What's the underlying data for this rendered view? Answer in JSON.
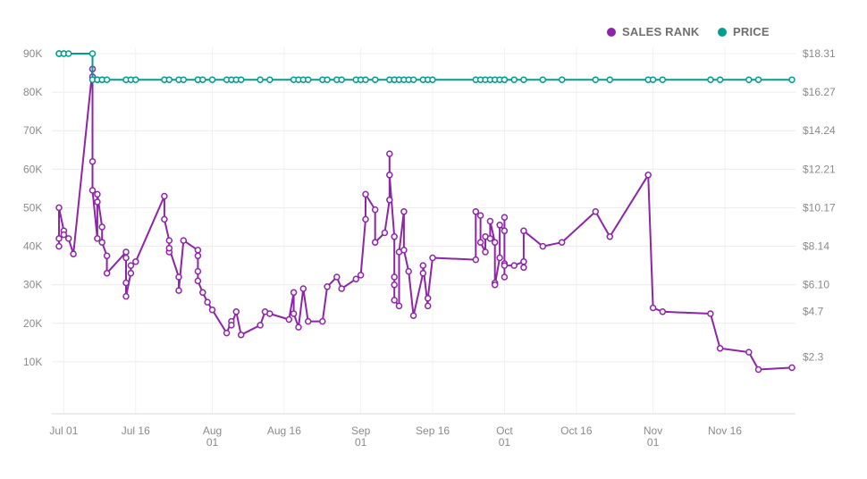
{
  "chart_data": {
    "type": "line",
    "title": "",
    "xlabel": "",
    "ylabel": "",
    "x_range": [
      "2020-06-30",
      "2020-11-30"
    ],
    "ylim": [
      0,
      90000
    ],
    "y2lim": [
      0,
      18.31
    ],
    "grid": true,
    "legend": "top-right",
    "x_ticks": [
      {
        "date": "2020-07-01",
        "line1": "Jul 01",
        "line2": ""
      },
      {
        "date": "2020-07-16",
        "line1": "Jul 16",
        "line2": ""
      },
      {
        "date": "2020-08-01",
        "line1": "Aug",
        "line2": "01"
      },
      {
        "date": "2020-08-16",
        "line1": "Aug 16",
        "line2": ""
      },
      {
        "date": "2020-09-01",
        "line1": "Sep",
        "line2": "01"
      },
      {
        "date": "2020-09-16",
        "line1": "Sep 16",
        "line2": ""
      },
      {
        "date": "2020-10-01",
        "line1": "Oct",
        "line2": "01"
      },
      {
        "date": "2020-10-16",
        "line1": "Oct 16",
        "line2": ""
      },
      {
        "date": "2020-11-01",
        "line1": "Nov",
        "line2": "01"
      },
      {
        "date": "2020-11-16",
        "line1": "Nov 16",
        "line2": ""
      }
    ],
    "y_ticks_left": [
      {
        "value": 10000,
        "label": "10K"
      },
      {
        "value": 20000,
        "label": "20K"
      },
      {
        "value": 30000,
        "label": "30K"
      },
      {
        "value": 40000,
        "label": "40K"
      },
      {
        "value": 50000,
        "label": "50K"
      },
      {
        "value": 60000,
        "label": "60K"
      },
      {
        "value": 70000,
        "label": "70K"
      },
      {
        "value": 80000,
        "label": "80K"
      },
      {
        "value": 90000,
        "label": "90K"
      }
    ],
    "y_ticks_right": [
      {
        "value": 2.3,
        "label": "$2.3"
      },
      {
        "value": 4.7,
        "label": "$4.7"
      },
      {
        "value": 6.1,
        "label": "$6.10"
      },
      {
        "value": 8.14,
        "label": "$8.14"
      },
      {
        "value": 10.17,
        "label": "$10.17"
      },
      {
        "value": 12.21,
        "label": "$12.21"
      },
      {
        "value": 14.24,
        "label": "$14.24"
      },
      {
        "value": 16.27,
        "label": "$16.27"
      },
      {
        "value": 18.31,
        "label": "$18.31"
      }
    ],
    "series": [
      {
        "name": "SALES RANK",
        "color": "#8e24aa",
        "axis": "left",
        "points": [
          [
            "2020-06-30",
            40000
          ],
          [
            "2020-06-30",
            42000
          ],
          [
            "2020-06-30",
            50000
          ],
          [
            "2020-07-01",
            44000
          ],
          [
            "2020-07-01",
            43000
          ],
          [
            "2020-07-02",
            42000
          ],
          [
            "2020-07-03",
            38000
          ],
          [
            "2020-07-07",
            86000
          ],
          [
            "2020-07-07",
            84000
          ],
          [
            "2020-07-07",
            62000
          ],
          [
            "2020-07-07",
            54500
          ],
          [
            "2020-07-08",
            42000
          ],
          [
            "2020-07-08",
            51500
          ],
          [
            "2020-07-08",
            53500
          ],
          [
            "2020-07-09",
            45000
          ],
          [
            "2020-07-09",
            41000
          ],
          [
            "2020-07-10",
            37500
          ],
          [
            "2020-07-10",
            33000
          ],
          [
            "2020-07-14",
            38500
          ],
          [
            "2020-07-14",
            37000
          ],
          [
            "2020-07-14",
            30500
          ],
          [
            "2020-07-14",
            27000
          ],
          [
            "2020-07-15",
            33000
          ],
          [
            "2020-07-15",
            35000
          ],
          [
            "2020-07-16",
            36000
          ],
          [
            "2020-07-22",
            53000
          ],
          [
            "2020-07-22",
            47000
          ],
          [
            "2020-07-23",
            41500
          ],
          [
            "2020-07-23",
            38500
          ],
          [
            "2020-07-23",
            39500
          ],
          [
            "2020-07-25",
            32000
          ],
          [
            "2020-07-25",
            28500
          ],
          [
            "2020-07-26",
            41500
          ],
          [
            "2020-07-29",
            39000
          ],
          [
            "2020-07-29",
            37500
          ],
          [
            "2020-07-29",
            33500
          ],
          [
            "2020-07-29",
            31000
          ],
          [
            "2020-07-30",
            28000
          ],
          [
            "2020-07-31",
            25500
          ],
          [
            "2020-08-01",
            23500
          ],
          [
            "2020-08-04",
            17500
          ],
          [
            "2020-08-05",
            20500
          ],
          [
            "2020-08-05",
            19500
          ],
          [
            "2020-08-06",
            23000
          ],
          [
            "2020-08-07",
            17000
          ],
          [
            "2020-08-11",
            19500
          ],
          [
            "2020-08-12",
            23000
          ],
          [
            "2020-08-13",
            22500
          ],
          [
            "2020-08-17",
            21000
          ],
          [
            "2020-08-18",
            28000
          ],
          [
            "2020-08-18",
            22500
          ],
          [
            "2020-08-19",
            19000
          ],
          [
            "2020-08-20",
            29000
          ],
          [
            "2020-08-21",
            20500
          ],
          [
            "2020-08-24",
            20500
          ],
          [
            "2020-08-25",
            29500
          ],
          [
            "2020-08-27",
            32000
          ],
          [
            "2020-08-28",
            29000
          ],
          [
            "2020-08-31",
            31500
          ],
          [
            "2020-09-01",
            32500
          ],
          [
            "2020-09-02",
            47000
          ],
          [
            "2020-09-02",
            53500
          ],
          [
            "2020-09-04",
            49500
          ],
          [
            "2020-09-04",
            41000
          ],
          [
            "2020-09-06",
            43500
          ],
          [
            "2020-09-07",
            52000
          ],
          [
            "2020-09-07",
            64000
          ],
          [
            "2020-09-07",
            58500
          ],
          [
            "2020-09-08",
            42500
          ],
          [
            "2020-09-08",
            32000
          ],
          [
            "2020-09-08",
            30000
          ],
          [
            "2020-09-08",
            26000
          ],
          [
            "2020-09-09",
            24500
          ],
          [
            "2020-09-09",
            38500
          ],
          [
            "2020-09-10",
            49000
          ],
          [
            "2020-09-10",
            39000
          ],
          [
            "2020-09-11",
            33500
          ],
          [
            "2020-09-12",
            22000
          ],
          [
            "2020-09-14",
            33000
          ],
          [
            "2020-09-14",
            35000
          ],
          [
            "2020-09-15",
            24500
          ],
          [
            "2020-09-15",
            26500
          ],
          [
            "2020-09-16",
            37000
          ],
          [
            "2020-09-25",
            36500
          ],
          [
            "2020-09-25",
            49000
          ],
          [
            "2020-09-26",
            48000
          ],
          [
            "2020-09-26",
            41000
          ],
          [
            "2020-09-27",
            38500
          ],
          [
            "2020-09-27",
            42500
          ],
          [
            "2020-09-28",
            42000
          ],
          [
            "2020-09-28",
            46500
          ],
          [
            "2020-09-29",
            41000
          ],
          [
            "2020-09-29",
            30500
          ],
          [
            "2020-09-29",
            30000
          ],
          [
            "2020-09-30",
            37000
          ],
          [
            "2020-09-30",
            45500
          ],
          [
            "2020-10-01",
            44000
          ],
          [
            "2020-10-01",
            35500
          ],
          [
            "2020-10-01",
            32000
          ],
          [
            "2020-10-01",
            47500
          ],
          [
            "2020-10-01",
            35000
          ],
          [
            "2020-10-03",
            35000
          ],
          [
            "2020-10-05",
            36000
          ],
          [
            "2020-10-05",
            34500
          ],
          [
            "2020-10-05",
            44000
          ],
          [
            "2020-10-09",
            40000
          ],
          [
            "2020-10-13",
            41000
          ],
          [
            "2020-10-20",
            49000
          ],
          [
            "2020-10-23",
            42500
          ],
          [
            "2020-10-31",
            58500
          ],
          [
            "2020-11-01",
            24000
          ],
          [
            "2020-11-03",
            23000
          ],
          [
            "2020-11-13",
            22500
          ],
          [
            "2020-11-15",
            13500
          ],
          [
            "2020-11-21",
            12500
          ],
          [
            "2020-11-23",
            8000
          ],
          [
            "2020-11-30",
            8500
          ]
        ]
      },
      {
        "name": "PRICE",
        "color": "#009e8e",
        "axis": "right",
        "points": [
          [
            "2020-06-30",
            18.31
          ],
          [
            "2020-06-30",
            18.31
          ],
          [
            "2020-06-30",
            18.31
          ],
          [
            "2020-07-01",
            18.31
          ],
          [
            "2020-07-01",
            18.31
          ],
          [
            "2020-07-02",
            18.31
          ],
          [
            "2020-07-07",
            18.31
          ],
          [
            "2020-07-07",
            16.93
          ],
          [
            "2020-07-08",
            16.93
          ],
          [
            "2020-07-08",
            16.93
          ],
          [
            "2020-07-09",
            16.93
          ],
          [
            "2020-07-09",
            16.93
          ],
          [
            "2020-07-10",
            16.93
          ],
          [
            "2020-07-14",
            16.93
          ],
          [
            "2020-07-15",
            16.93
          ],
          [
            "2020-07-16",
            16.93
          ],
          [
            "2020-07-22",
            16.93
          ],
          [
            "2020-07-23",
            16.93
          ],
          [
            "2020-07-25",
            16.93
          ],
          [
            "2020-07-26",
            16.93
          ],
          [
            "2020-07-29",
            16.93
          ],
          [
            "2020-07-29",
            16.93
          ],
          [
            "2020-07-30",
            16.93
          ],
          [
            "2020-08-01",
            16.93
          ],
          [
            "2020-08-04",
            16.93
          ],
          [
            "2020-08-05",
            16.93
          ],
          [
            "2020-08-06",
            16.93
          ],
          [
            "2020-08-07",
            16.93
          ],
          [
            "2020-08-11",
            16.93
          ],
          [
            "2020-08-13",
            16.93
          ],
          [
            "2020-08-18",
            16.93
          ],
          [
            "2020-08-19",
            16.93
          ],
          [
            "2020-08-20",
            16.93
          ],
          [
            "2020-08-21",
            16.93
          ],
          [
            "2020-08-24",
            16.93
          ],
          [
            "2020-08-25",
            16.93
          ],
          [
            "2020-08-27",
            16.93
          ],
          [
            "2020-08-28",
            16.93
          ],
          [
            "2020-08-31",
            16.93
          ],
          [
            "2020-09-01",
            16.93
          ],
          [
            "2020-09-02",
            16.93
          ],
          [
            "2020-09-04",
            16.93
          ],
          [
            "2020-09-07",
            16.93
          ],
          [
            "2020-09-08",
            16.93
          ],
          [
            "2020-09-08",
            16.93
          ],
          [
            "2020-09-09",
            16.93
          ],
          [
            "2020-09-10",
            16.93
          ],
          [
            "2020-09-11",
            16.93
          ],
          [
            "2020-09-12",
            16.93
          ],
          [
            "2020-09-14",
            16.93
          ],
          [
            "2020-09-15",
            16.93
          ],
          [
            "2020-09-16",
            16.93
          ],
          [
            "2020-09-25",
            16.93
          ],
          [
            "2020-09-26",
            16.93
          ],
          [
            "2020-09-27",
            16.93
          ],
          [
            "2020-09-28",
            16.93
          ],
          [
            "2020-09-29",
            16.93
          ],
          [
            "2020-09-30",
            16.93
          ],
          [
            "2020-10-01",
            16.93
          ],
          [
            "2020-10-01",
            16.93
          ],
          [
            "2020-10-03",
            16.93
          ],
          [
            "2020-10-05",
            16.93
          ],
          [
            "2020-10-09",
            16.93
          ],
          [
            "2020-10-13",
            16.93
          ],
          [
            "2020-10-20",
            16.93
          ],
          [
            "2020-10-23",
            16.93
          ],
          [
            "2020-10-31",
            16.93
          ],
          [
            "2020-11-01",
            16.93
          ],
          [
            "2020-11-03",
            16.93
          ],
          [
            "2020-11-13",
            16.93
          ],
          [
            "2020-11-15",
            16.93
          ],
          [
            "2020-11-21",
            16.93
          ],
          [
            "2020-11-23",
            16.93
          ],
          [
            "2020-11-30",
            16.93
          ]
        ]
      }
    ]
  }
}
